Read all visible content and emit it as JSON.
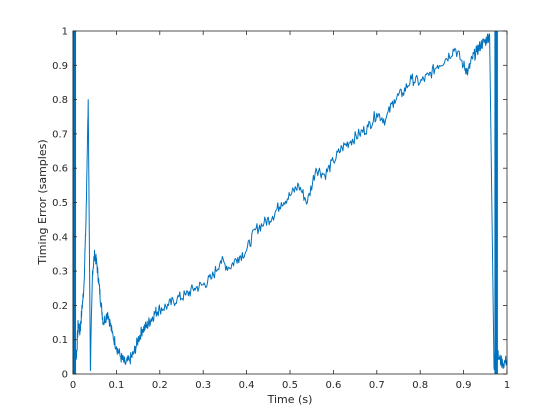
{
  "chart_data": {
    "type": "line",
    "title": "",
    "xlabel": "Time (s)",
    "ylabel": "Timing Error (samples)",
    "xlim": [
      0,
      1
    ],
    "ylim": [
      0,
      1
    ],
    "xticks": [
      0,
      0.1,
      0.2,
      0.3,
      0.4,
      0.5,
      0.6,
      0.7,
      0.8,
      0.9,
      1
    ],
    "xtick_labels": [
      "0",
      "0.1",
      "0.2",
      "0.3",
      "0.4",
      "0.5",
      "0.6",
      "0.7",
      "0.8",
      "0.9",
      "1"
    ],
    "yticks": [
      0,
      0.1,
      0.2,
      0.3,
      0.4,
      0.5,
      0.6,
      0.7,
      0.8,
      0.9,
      1
    ],
    "ytick_labels": [
      "0",
      "0.1",
      "0.2",
      "0.3",
      "0.4",
      "0.5",
      "0.6",
      "0.7",
      "0.8",
      "0.9",
      "1"
    ],
    "grid": false,
    "legend": "none",
    "series": [
      {
        "color": "#0072bd",
        "description": "noisy timing error trace that wraps between 0 and 1 sample",
        "x": [
          0,
          0.004,
          0.008,
          0.012,
          0.016,
          0.02,
          0.025,
          0.03,
          0.035,
          0.04,
          0.045,
          0.05,
          0.055,
          0.06,
          0.065,
          0.07,
          0.08,
          0.09,
          0.1,
          0.11,
          0.12,
          0.13,
          0.14,
          0.15,
          0.16,
          0.17,
          0.18,
          0.19,
          0.2,
          0.22,
          0.24,
          0.26,
          0.28,
          0.3,
          0.32,
          0.34,
          0.36,
          0.38,
          0.4,
          0.42,
          0.44,
          0.46,
          0.48,
          0.5,
          0.52,
          0.54,
          0.56,
          0.58,
          0.6,
          0.62,
          0.64,
          0.66,
          0.68,
          0.7,
          0.72,
          0.74,
          0.76,
          0.78,
          0.8,
          0.82,
          0.84,
          0.86,
          0.88,
          0.9,
          0.91,
          0.92,
          0.93,
          0.94,
          0.95,
          0.96,
          0.97,
          0.975,
          0.98,
          0.99,
          1
        ],
        "y": [
          0.02,
          0.1,
          0.05,
          0.15,
          0.12,
          0.18,
          0.25,
          0.45,
          0.8,
          0.01,
          0.3,
          0.35,
          0.32,
          0.26,
          0.2,
          0.15,
          0.18,
          0.12,
          0.08,
          0.05,
          0.03,
          0.04,
          0.06,
          0.1,
          0.13,
          0.14,
          0.16,
          0.18,
          0.19,
          0.2,
          0.22,
          0.23,
          0.25,
          0.26,
          0.28,
          0.33,
          0.31,
          0.34,
          0.36,
          0.42,
          0.44,
          0.46,
          0.5,
          0.52,
          0.55,
          0.5,
          0.6,
          0.58,
          0.62,
          0.66,
          0.68,
          0.7,
          0.72,
          0.76,
          0.74,
          0.8,
          0.82,
          0.86,
          0.85,
          0.87,
          0.9,
          0.92,
          0.95,
          0.9,
          0.88,
          0.92,
          0.94,
          0.96,
          0.97,
          0.99,
          0.02,
          0.08,
          0.05,
          0.03,
          0.04
        ]
      }
    ],
    "wraps": [
      {
        "x": 0.003,
        "y": [
          0,
          1
        ]
      },
      {
        "x": 0.975,
        "y": [
          0,
          1
        ]
      }
    ]
  }
}
